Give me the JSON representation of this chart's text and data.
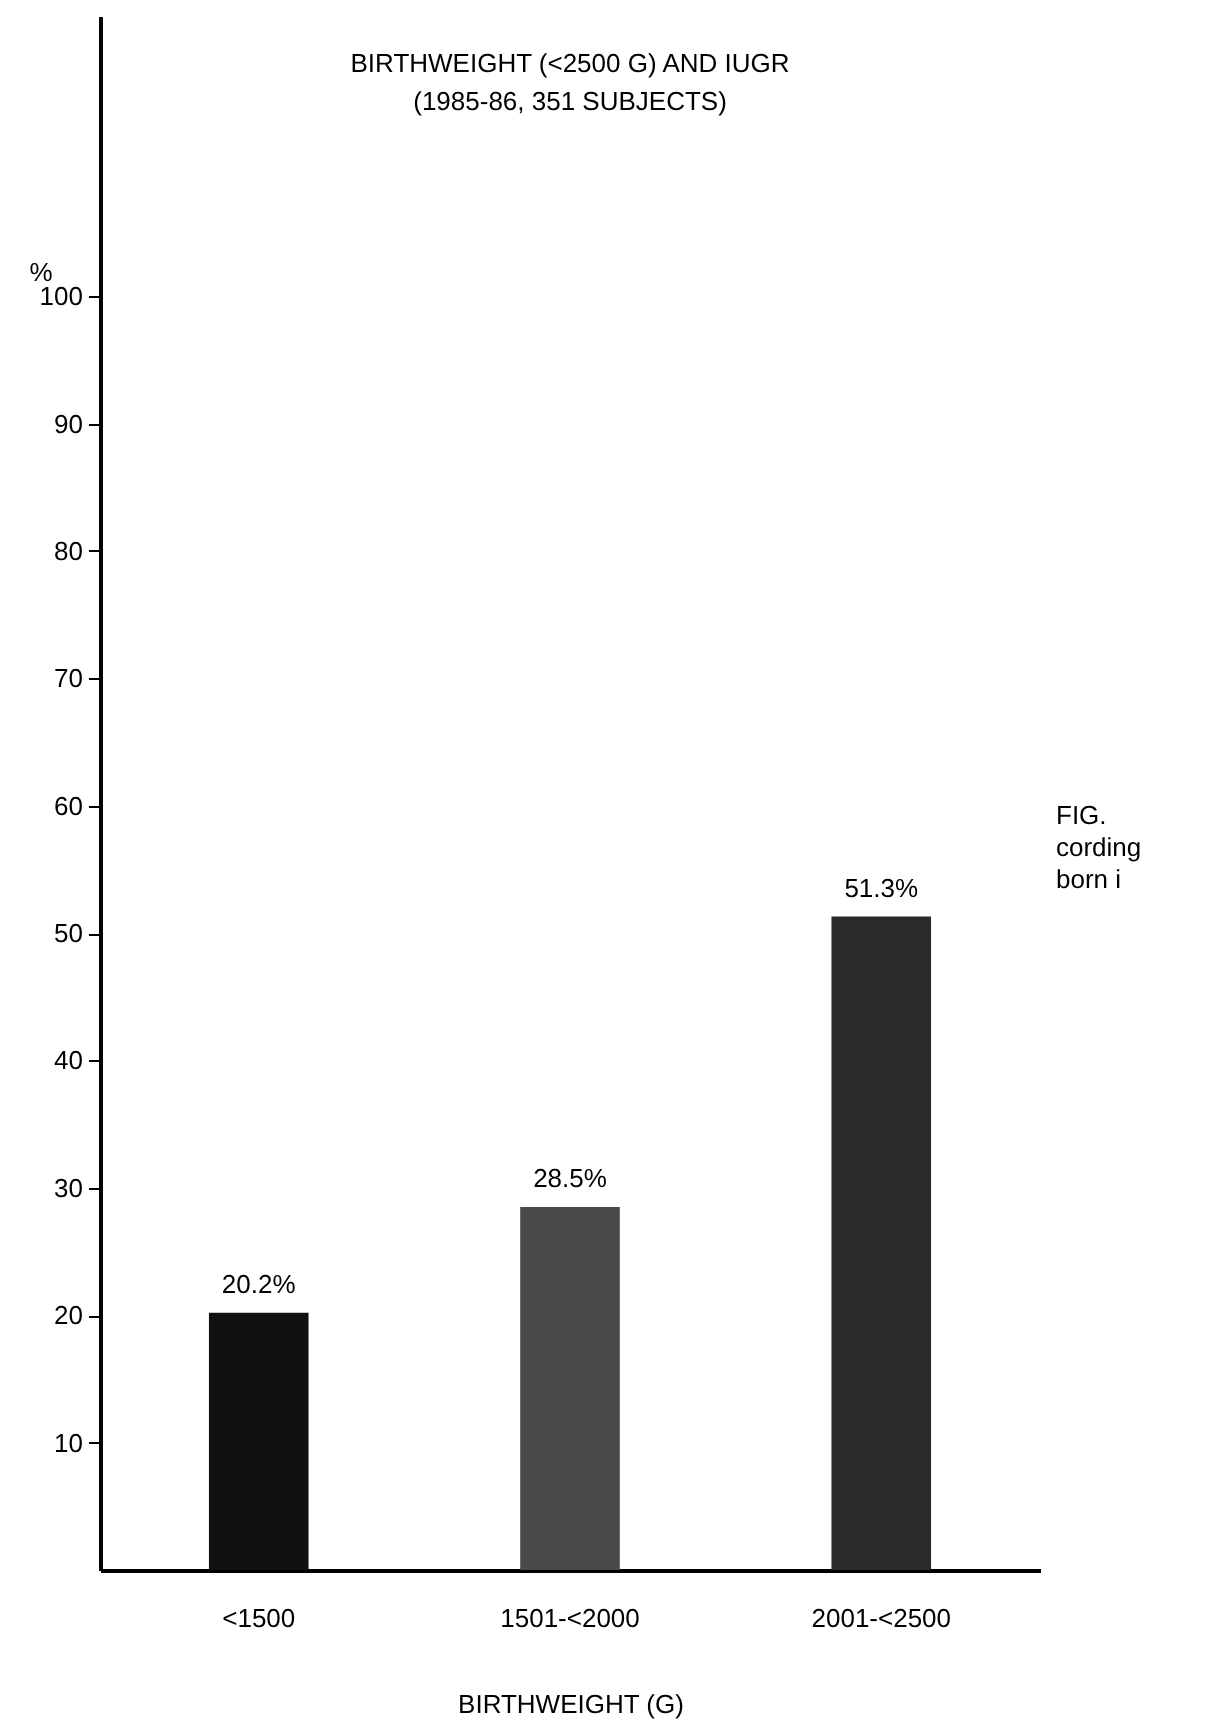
{
  "chart_data": {
    "type": "bar",
    "title": "BIRTHWEIGHT (<2500 G) AND IUGR",
    "subtitle": "(1985-86, 351 SUBJECTS)",
    "xlabel": "BIRTHWEIGHT (G)",
    "ylabel": "%",
    "categories": [
      "<1500",
      "1501-<2000",
      "2001-<2500"
    ],
    "values": [
      20.2,
      28.5,
      51.3
    ],
    "value_labels": [
      "20.2%",
      "28.5%",
      "51.3%"
    ],
    "colors": [
      "#111111",
      "#4a4a4a",
      "#2a2a2a"
    ],
    "ylim": [
      0,
      122
    ],
    "yticks": [
      10,
      20,
      30,
      40,
      50,
      60,
      70,
      80,
      90,
      100
    ],
    "annotations": [
      "FIG.",
      "cording",
      "born i"
    ],
    "grid": false
  }
}
